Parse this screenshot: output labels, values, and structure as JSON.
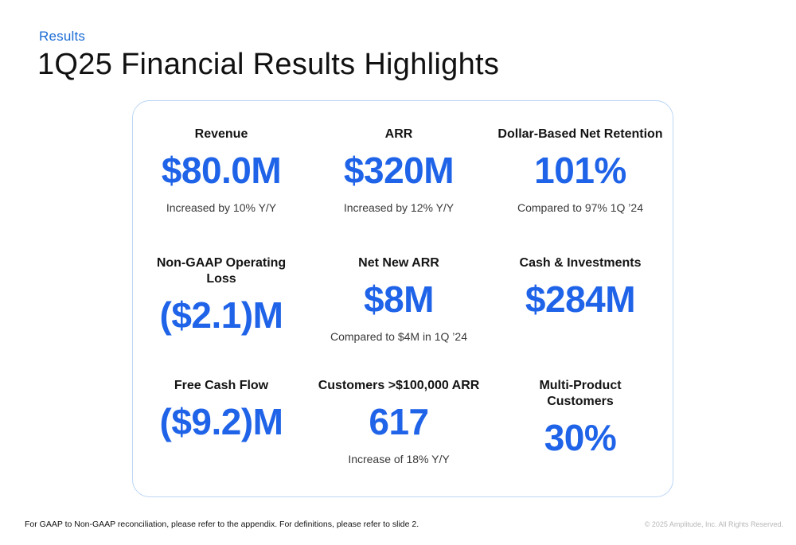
{
  "header": {
    "section": "Results",
    "title": "1Q25 Financial Results Highlights"
  },
  "metrics": [
    {
      "label": "Revenue",
      "value": "$80.0M",
      "note": "Increased by 10% Y/Y"
    },
    {
      "label": "ARR",
      "value": "$320M",
      "note": "Increased by 12% Y/Y"
    },
    {
      "label": "Dollar-Based Net Retention",
      "value": "101%",
      "note": "Compared to 97% 1Q ’24"
    },
    {
      "label": "Non-GAAP Operating Loss",
      "value": "($2.1)M",
      "note": ""
    },
    {
      "label": "Net New ARR",
      "value": "$8M",
      "note": "Compared to $4M in 1Q ’24"
    },
    {
      "label": "Cash & Investments",
      "value": "$284M",
      "note": ""
    },
    {
      "label": "Free Cash Flow",
      "value": "($9.2)M",
      "note": ""
    },
    {
      "label": "Customers >$100,000 ARR",
      "value": "617",
      "note": "Increase of 18% Y/Y"
    },
    {
      "label": "Multi-Product Customers",
      "value": "30%",
      "note": ""
    }
  ],
  "footer": {
    "footnote": "For GAAP to Non-GAAP reconciliation, please refer to the appendix. For definitions, please refer to slide 2.",
    "copyright": "© 2025 Amplitude, Inc.  All Rights Reserved."
  },
  "colors": {
    "accent_blue": "#1f63e8",
    "section_blue": "#1a6bd6",
    "card_border": "#bcd6f6"
  }
}
